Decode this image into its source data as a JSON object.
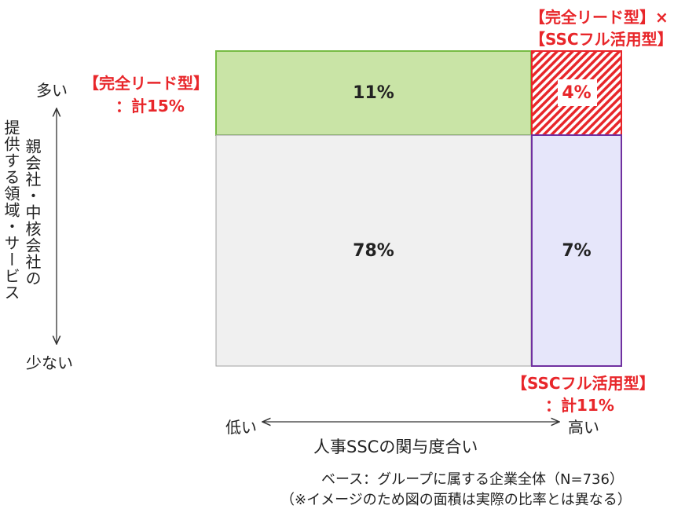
{
  "chart_data": {
    "type": "mosaic",
    "y_axis": {
      "label_col1": "親会社・中核会社の",
      "label_col2": "提供する領域・サービス",
      "high": "多い",
      "low": "少ない"
    },
    "x_axis": {
      "label": "人事SSCの関与度合い",
      "low": "低い",
      "high": "高い"
    },
    "cells": [
      {
        "row": "多い",
        "col": "低い",
        "value": 11,
        "label": "11%",
        "color": "#c9e4a6",
        "border": "#77bb44"
      },
      {
        "row": "多い",
        "col": "高い",
        "value": 4,
        "label": "4%",
        "color": "hatched-red",
        "border": "#e8262a"
      },
      {
        "row": "少ない",
        "col": "低い",
        "value": 78,
        "label": "78%",
        "color": "#f0f0f0",
        "border": "#a0a0a0"
      },
      {
        "row": "少ない",
        "col": "高い",
        "value": 7,
        "label": "7%",
        "color": "#e6e6fa",
        "border": "#7030a0"
      }
    ],
    "annotations": {
      "lead_line1": "【完全リード型】",
      "lead_line2": "：計15%",
      "combo_line1": "【完全リード型】×",
      "combo_line2": "【SSCフル活用型】",
      "ssc_line1": "【SSCフル活用型】",
      "ssc_line2": "：計11%"
    },
    "base_note": "ベース：グループに属する企業全体（N=736）",
    "area_note": "（※イメージのため図の面積は実際の比率とは異なる）"
  }
}
